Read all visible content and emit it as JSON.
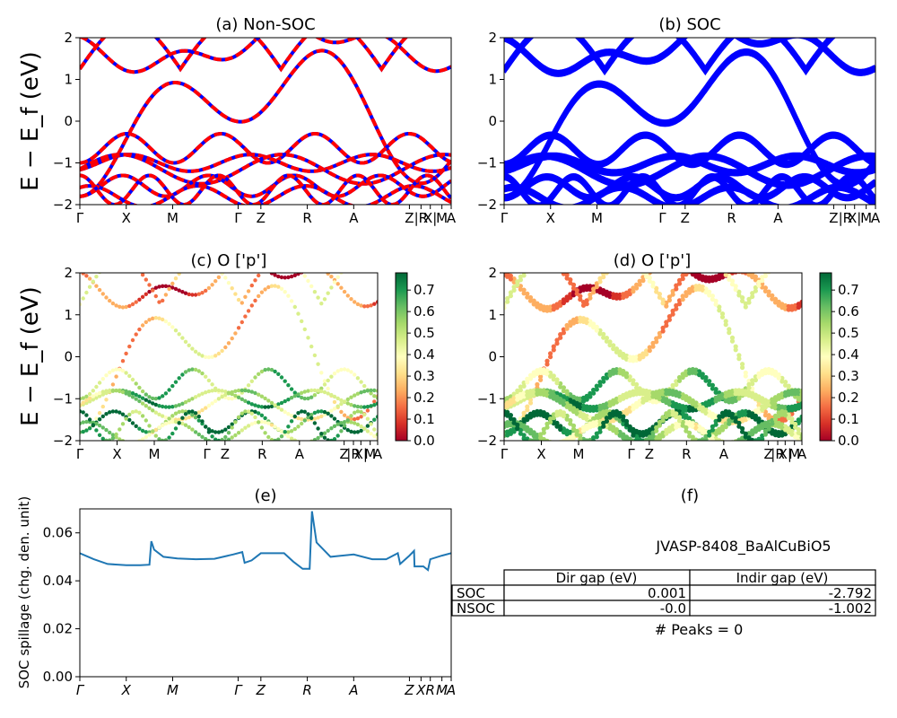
{
  "chart_data": [
    {
      "id": "a",
      "type": "line",
      "title": "(a) Non-SOC",
      "ylabel": "E − E_f (eV)",
      "ylim": [
        -2,
        2
      ],
      "yticks": [
        "2",
        "1",
        "0",
        "−1",
        "−2"
      ],
      "kpath": [
        "Γ",
        "X",
        "M",
        "Γ",
        "Z",
        "R",
        "A",
        "Z",
        "|R",
        "X|",
        "M",
        "A"
      ],
      "kpos": [
        0,
        1,
        2,
        3.41,
        3.9,
        4.9,
        5.9,
        7.1,
        7.35,
        7.55,
        7.8,
        8.0
      ],
      "style": "dashed red over blue"
    },
    {
      "id": "b",
      "type": "line",
      "title": "(b) SOC",
      "ylim": [
        -2,
        2
      ],
      "yticks": [
        "2",
        "1",
        "0",
        "−1",
        "−2"
      ],
      "kpath": [
        "Γ",
        "X",
        "M",
        "Γ",
        "Z",
        "R",
        "A",
        "Z",
        "|R",
        "X|",
        "M",
        "A"
      ],
      "kpos": [
        0,
        1,
        2,
        3.41,
        3.9,
        4.9,
        5.9,
        7.1,
        7.35,
        7.55,
        7.8,
        8.0
      ],
      "style": "solid blue"
    },
    {
      "id": "c",
      "type": "scatter",
      "title": "(c)  O ['p']",
      "ylabel": "E − E_f (eV)",
      "ylim": [
        -2,
        2
      ],
      "yticks": [
        "2",
        "1",
        "0",
        "−1",
        "−2"
      ],
      "kpath": [
        "Γ",
        "X",
        "M",
        "Γ",
        "Z",
        "R",
        "A",
        "Z",
        "|R",
        "X|",
        "M",
        "A"
      ],
      "colorbar": {
        "range": [
          0.0,
          0.78
        ],
        "ticks": [
          "0.7",
          "0.6",
          "0.5",
          "0.4",
          "0.3",
          "0.2",
          "0.1",
          "0.0"
        ],
        "cmap": "RdYlGn"
      }
    },
    {
      "id": "d",
      "type": "scatter",
      "title": "(d) O ['p']",
      "ylim": [
        -2,
        2
      ],
      "yticks": [
        "2",
        "1",
        "0",
        "−1",
        "−2"
      ],
      "kpath": [
        "Γ",
        "X",
        "M",
        "Γ",
        "Z",
        "R",
        "A",
        "Z",
        "|R",
        "X|",
        "M",
        "A"
      ],
      "colorbar": {
        "range": [
          0.0,
          0.78
        ],
        "ticks": [
          "0.7",
          "0.6",
          "0.5",
          "0.4",
          "0.3",
          "0.2",
          "0.1",
          "0.0"
        ],
        "cmap": "RdYlGn"
      }
    },
    {
      "id": "e",
      "type": "line",
      "title": "(e)",
      "ylabel": "SOC spillage (chg. den. unit)",
      "ylim": [
        0.0,
        0.07
      ],
      "yticks": [
        "0.06",
        "0.04",
        "0.02",
        "0.00"
      ],
      "kpath": [
        "Γ",
        "X",
        "M",
        "Γ",
        "Z",
        "R",
        "A",
        "Z",
        "X",
        "R",
        "M",
        "A"
      ],
      "series": [
        {
          "x": [
            0,
            0.3,
            0.6,
            1.0,
            1.3,
            1.5,
            1.54,
            1.6,
            1.8,
            2.1,
            2.5,
            2.9,
            3.3,
            3.5,
            3.55,
            3.7,
            3.9,
            4.4,
            4.6,
            4.8,
            4.95,
            5.0,
            5.1,
            5.4,
            5.9,
            6.3,
            6.6,
            6.85,
            6.9,
            7.1,
            7.2,
            7.21,
            7.4,
            7.5,
            7.55,
            7.8,
            8.0
          ],
          "y": [
            0.0515,
            0.049,
            0.047,
            0.0465,
            0.0465,
            0.0467,
            0.0565,
            0.053,
            0.05,
            0.0493,
            0.049,
            0.0492,
            0.051,
            0.052,
            0.0475,
            0.0485,
            0.0515,
            0.0515,
            0.048,
            0.045,
            0.045,
            0.069,
            0.056,
            0.05,
            0.051,
            0.049,
            0.049,
            0.0515,
            0.047,
            0.0505,
            0.0525,
            0.046,
            0.046,
            0.0445,
            0.049,
            0.0505,
            0.0515
          ],
          "color": "#1f77b4"
        }
      ]
    }
  ],
  "panel_f": {
    "title": "(f)",
    "material": "JVASP-8408_BaAlCuBiO5",
    "headers": [
      "Dir gap (eV)",
      "Indir gap (eV)"
    ],
    "rows": [
      {
        "label": "SOC",
        "dir": "0.001",
        "indir": "-2.792"
      },
      {
        "label": "NSOC",
        "dir": "-0.0",
        "indir": "-1.002"
      }
    ],
    "peaks": "# Peaks = 0"
  },
  "colors": {
    "blue": "#0000ff",
    "red": "#ff0000",
    "spill": "#1f77b4"
  }
}
